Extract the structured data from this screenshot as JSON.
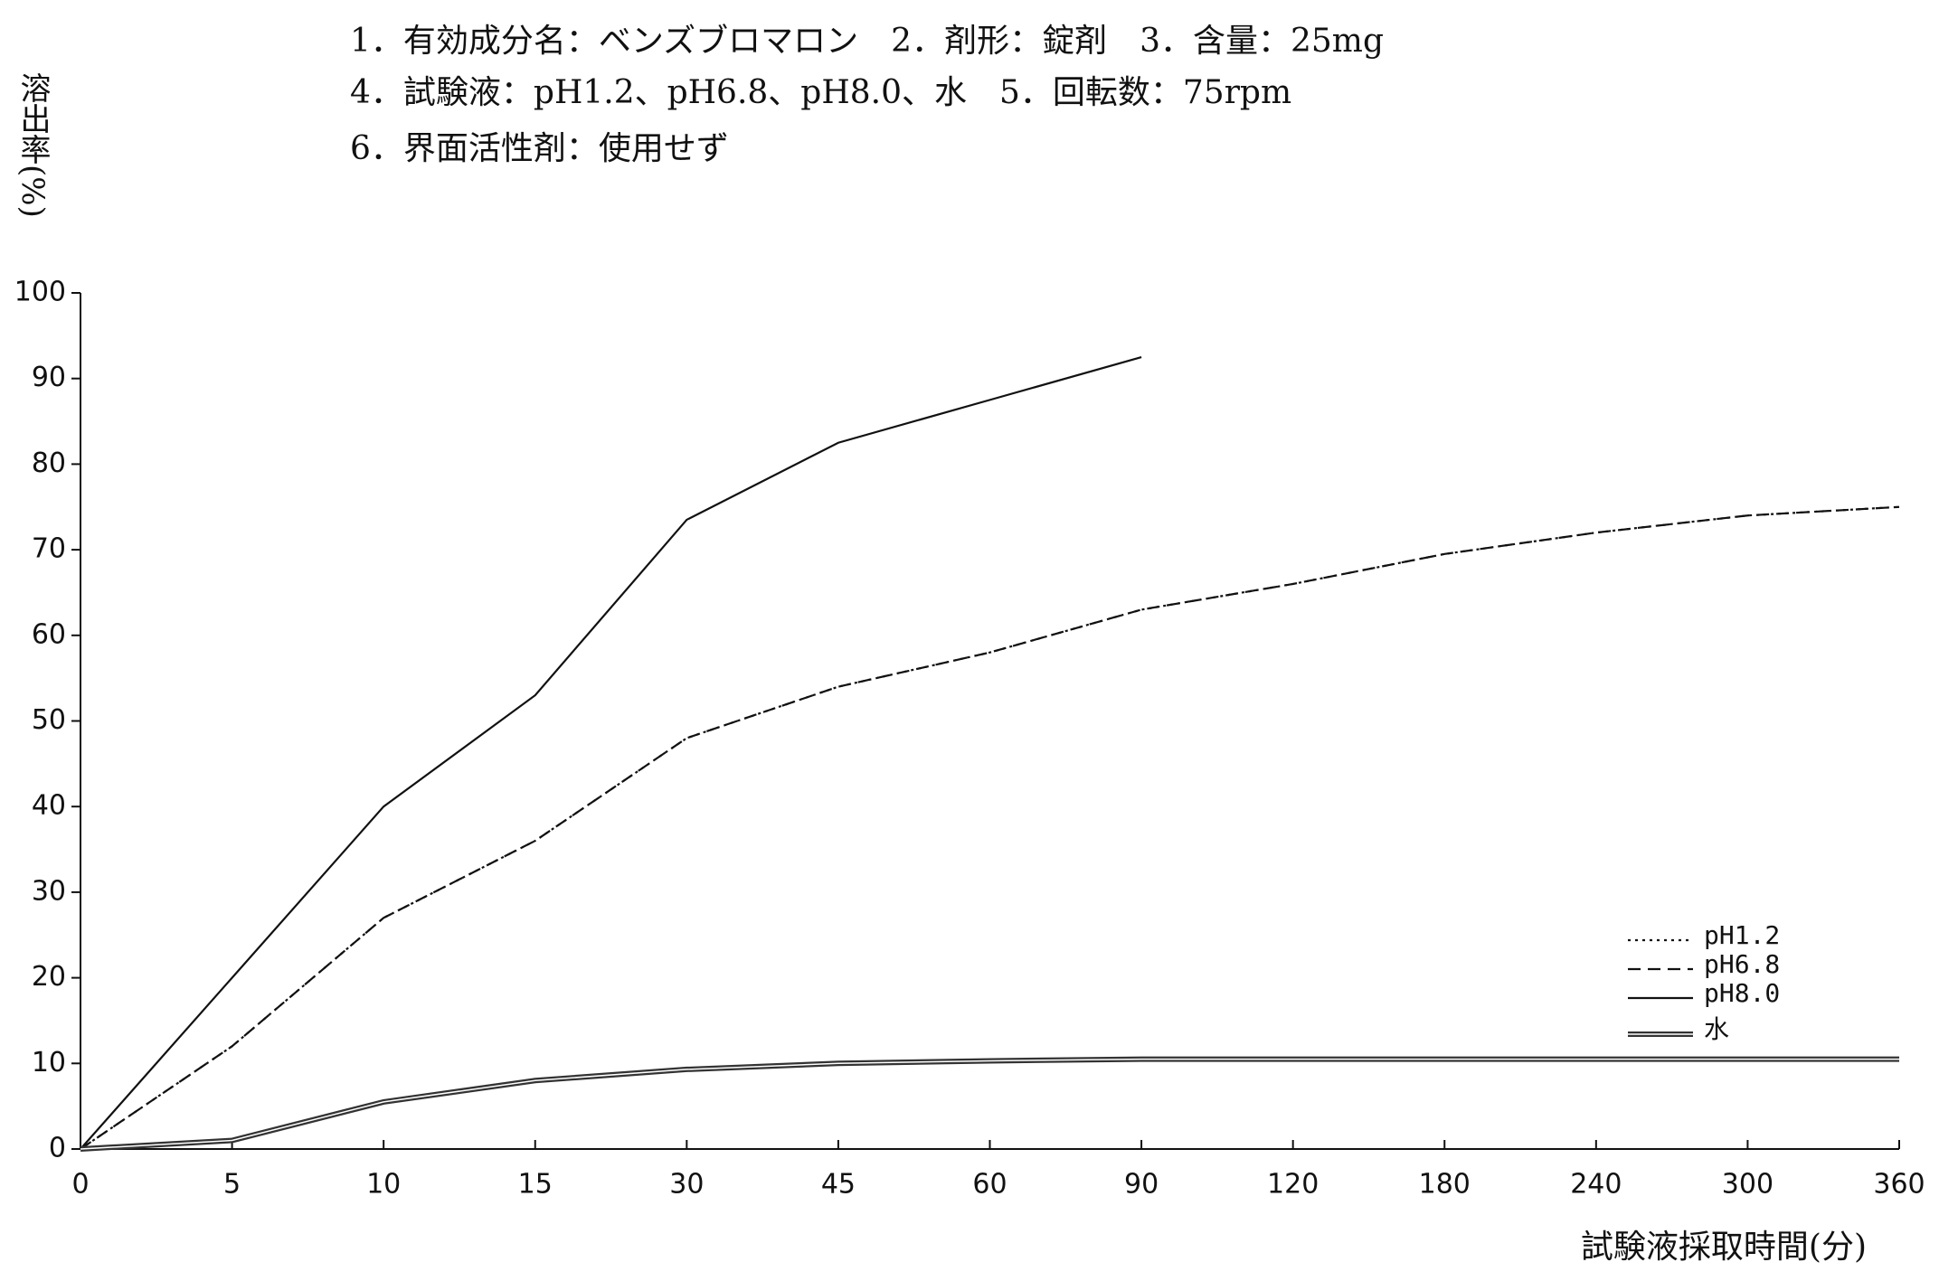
{
  "chart_data": {
    "type": "line",
    "header": [
      "1．有効成分名：ベンズブロマロン　2．剤形：錠剤　3．含量：25mg",
      "4．試験液：pH1.2、pH6.8、pH8.0、水　5．回転数：75rpm",
      "6．界面活性剤：使用せず"
    ],
    "y_label": "溶出率(%)",
    "x_label": "試験液採取時間(分)",
    "categories": [
      "0",
      "5",
      "10",
      "15",
      "30",
      "45",
      "60",
      "90",
      "120",
      "180",
      "240",
      "300",
      "360"
    ],
    "ylim": [
      0,
      100
    ],
    "yticks": [
      0,
      10,
      20,
      30,
      40,
      50,
      60,
      70,
      80,
      90,
      100
    ],
    "legend": "lower right",
    "series": [
      {
        "name": "pH1.2",
        "color": "#111111",
        "style": "dotted",
        "values": [
          0,
          12,
          27,
          36,
          48,
          54,
          58,
          63,
          66,
          69.5,
          72,
          74,
          75
        ]
      },
      {
        "name": "pH6.8",
        "color": "#111111",
        "style": "dashed",
        "values": [
          0,
          12,
          27,
          36,
          48,
          54,
          58,
          63,
          66,
          69.5,
          72,
          74,
          75
        ]
      },
      {
        "name": "pH8.0",
        "color": "#111111",
        "style": "solid",
        "values": [
          0,
          20,
          40,
          53,
          73.5,
          82.5,
          87.5,
          92.5,
          null,
          null,
          null,
          null,
          null
        ]
      },
      {
        "name": "水",
        "color": "#333333",
        "style": "double",
        "values": [
          0,
          1,
          5.5,
          8,
          9.3,
          10,
          10.3,
          10.5,
          10.5,
          10.5,
          10.5,
          10.5,
          10.5
        ]
      }
    ]
  }
}
